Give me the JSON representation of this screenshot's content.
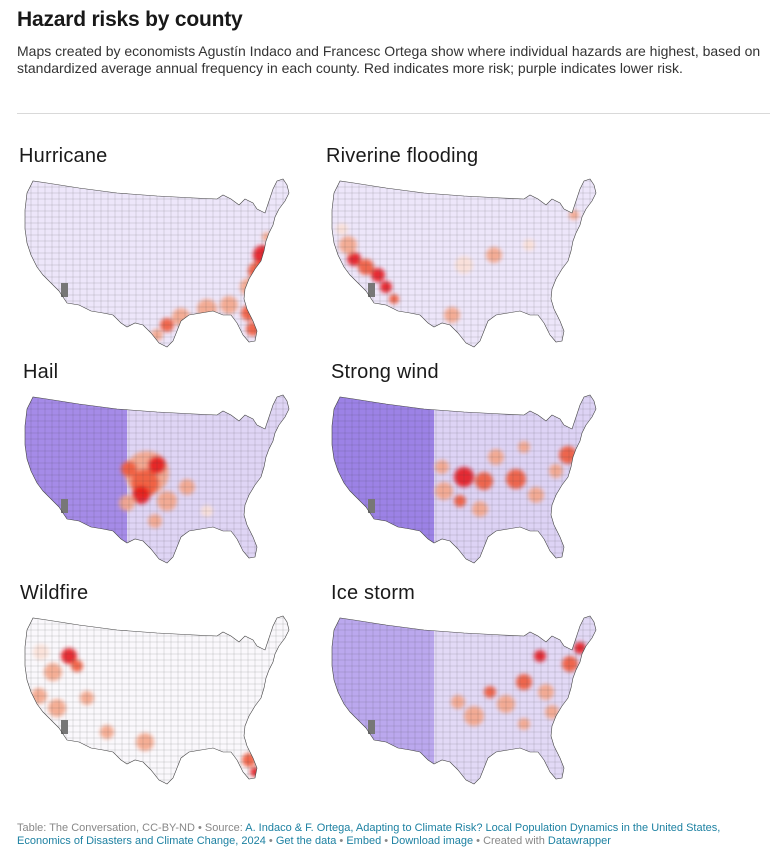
{
  "header": {
    "title": "Hazard risks by county",
    "subtitle": "Maps created by economists Agustín Indaco and Francesc Ortega show where individual hazards are highest, based on standardized average annual frequency in each county. Red indicates more risk; purple indicates lower risk."
  },
  "colors": {
    "high_risk": "#e41a1c",
    "mid_risk": "#f4a58a",
    "low_risk": "#f7f3fb",
    "lowest_risk": "#9b7fe6",
    "no_data": "#777777",
    "link": "#1d81a2"
  },
  "maps": [
    {
      "title": "Hurricane",
      "base": "#ede6fa"
    },
    {
      "title": "Riverine flooding",
      "base": "#ede6fa"
    },
    {
      "title": "Hail",
      "base": "#a58be8"
    },
    {
      "title": "Strong wind",
      "base": "#9c82e6"
    },
    {
      "title": "Wildfire",
      "base": "#faf8fc"
    },
    {
      "title": "Ice storm",
      "base": "#bba8ee"
    }
  ],
  "footer": {
    "prefix": "Table: The Conversation, CC-BY-ND • Source: ",
    "source_link": "A. Indaco & F. Ortega, Adapting to Climate Risk? Local Population Dynamics in the United States, Economics of Disasters and Climate Change, 2024",
    "get_data": "Get the data",
    "embed": "Embed",
    "download": "Download image",
    "created_with": "Created with",
    "tool": "Datawrapper"
  }
}
